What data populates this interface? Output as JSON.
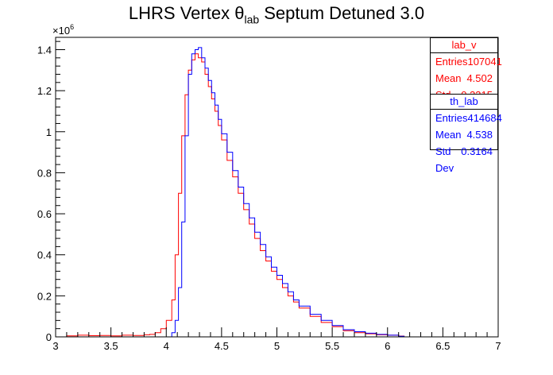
{
  "chart_data": {
    "type": "step-histogram",
    "title_parts": {
      "pre": "LHRS Vertex ",
      "theta": "θ",
      "sub": "lab",
      "post": " Septum Detuned 3.0"
    },
    "y_multiplier": "×10",
    "y_exponent": "6",
    "xlim": [
      3,
      7
    ],
    "ylim": [
      0,
      1.46
    ],
    "xticks": [
      3,
      3.5,
      4,
      4.5,
      5,
      5.5,
      6,
      6.5,
      7
    ],
    "xtick_labels": [
      "3",
      "3.5",
      "4",
      "4.5",
      "5",
      "5.5",
      "6",
      "6.5",
      "7"
    ],
    "yticks": [
      0,
      0.2,
      0.4,
      0.6,
      0.8,
      1,
      1.2,
      1.4
    ],
    "ytick_labels": [
      "0",
      "0.2",
      "0.4",
      "0.6",
      "0.8",
      "1",
      "1.2",
      "1.4"
    ],
    "series": [
      {
        "name": "lab_v",
        "color": "#ff0000",
        "x": [
          3.1,
          3.2,
          3.3,
          3.4,
          3.5,
          3.6,
          3.7,
          3.8,
          3.85,
          3.9,
          3.95,
          4.0,
          4.05,
          4.08,
          4.11,
          4.14,
          4.17,
          4.2,
          4.23,
          4.26,
          4.29,
          4.32,
          4.35,
          4.38,
          4.41,
          4.44,
          4.47,
          4.5,
          4.55,
          4.6,
          4.65,
          4.7,
          4.75,
          4.8,
          4.85,
          4.9,
          4.95,
          5.0,
          5.05,
          5.1,
          5.15,
          5.2,
          5.3,
          5.4,
          5.5,
          5.6,
          5.7,
          5.8,
          5.9,
          6.0,
          6.1
        ],
        "y": [
          0.005,
          0.008,
          0.006,
          0.007,
          0.005,
          0.008,
          0.007,
          0.01,
          0.012,
          0.02,
          0.04,
          0.08,
          0.18,
          0.4,
          0.7,
          0.98,
          1.18,
          1.3,
          1.35,
          1.38,
          1.36,
          1.34,
          1.28,
          1.22,
          1.16,
          1.1,
          1.03,
          0.96,
          0.86,
          0.78,
          0.7,
          0.62,
          0.55,
          0.48,
          0.42,
          0.37,
          0.32,
          0.28,
          0.24,
          0.2,
          0.17,
          0.14,
          0.1,
          0.07,
          0.05,
          0.03,
          0.02,
          0.015,
          0.01,
          0.008,
          0.004
        ]
      },
      {
        "name": "th_lab",
        "color": "#0000ff",
        "x": [
          4.05,
          4.08,
          4.11,
          4.14,
          4.17,
          4.2,
          4.23,
          4.26,
          4.29,
          4.32,
          4.35,
          4.38,
          4.41,
          4.44,
          4.47,
          4.5,
          4.55,
          4.6,
          4.65,
          4.7,
          4.75,
          4.8,
          4.85,
          4.9,
          4.95,
          5.0,
          5.05,
          5.1,
          5.15,
          5.2,
          5.3,
          5.4,
          5.5,
          5.6,
          5.7,
          5.8,
          5.9,
          6.0,
          6.1
        ],
        "y": [
          0.02,
          0.08,
          0.24,
          0.56,
          0.98,
          1.28,
          1.38,
          1.4,
          1.41,
          1.36,
          1.31,
          1.25,
          1.19,
          1.13,
          1.06,
          0.99,
          0.9,
          0.81,
          0.73,
          0.65,
          0.58,
          0.51,
          0.45,
          0.39,
          0.34,
          0.3,
          0.26,
          0.22,
          0.18,
          0.15,
          0.11,
          0.08,
          0.055,
          0.035,
          0.025,
          0.018,
          0.012,
          0.008,
          0.003
        ]
      }
    ]
  },
  "stats_boxes": [
    {
      "name": "lab_v",
      "color": "#ff0000",
      "rows": [
        {
          "label": "Entries",
          "value": "107041"
        },
        {
          "label": "Mean",
          "value": "4.502"
        },
        {
          "label": "Std Dev",
          "value": "0.3315"
        }
      ]
    },
    {
      "name": "th_lab",
      "color": "#0000ff",
      "rows": [
        {
          "label": "Entries",
          "value": "414684"
        },
        {
          "label": "Mean",
          "value": "4.538"
        },
        {
          "label": "Std Dev",
          "value": "0.3164"
        }
      ]
    }
  ]
}
